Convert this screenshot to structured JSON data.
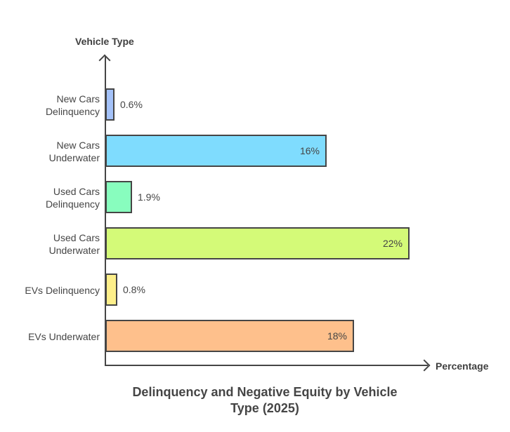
{
  "chart_data": {
    "type": "bar",
    "orientation": "horizontal",
    "title": "Delinquency and Negative Equity by Vehicle Type (2025)",
    "title_lines": [
      "Delinquency and Negative Equity by Vehicle",
      "Type (2025)"
    ],
    "xlabel": "Percentage",
    "ylabel": "Vehicle Type",
    "categories": [
      "New Cars Delinquency",
      "New Cars Underwater",
      "Used Cars Delinquency",
      "Used Cars Underwater",
      "EVs Delinquency",
      "EVs Underwater"
    ],
    "values": [
      0.6,
      16,
      1.9,
      22,
      0.8,
      18
    ],
    "value_labels": [
      "0.6%",
      "16%",
      "1.9%",
      "22%",
      "0.8%",
      "18%"
    ],
    "colors": [
      "#a4c2f9",
      "#7fdcfe",
      "#88fdbe",
      "#d4fa78",
      "#fdef8a",
      "#fec08c"
    ],
    "grid": false,
    "legend": null,
    "xlim": [
      0,
      24
    ]
  },
  "labels": {
    "cat0": [
      "New Cars",
      "Delinquency"
    ],
    "cat1": [
      "New Cars",
      "Underwater"
    ],
    "cat2": [
      "Used Cars",
      "Delinquency"
    ],
    "cat3": [
      "Used Cars",
      "Underwater"
    ],
    "cat4": [
      "EVs Delinquency"
    ],
    "cat5": [
      "EVs Underwater"
    ]
  }
}
